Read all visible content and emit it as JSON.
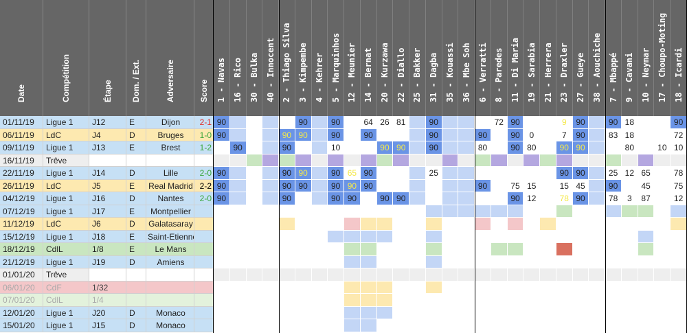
{
  "headers": {
    "date": "Date",
    "competition": "Compétition",
    "etape": "Étape",
    "dom_ext": "Dom. / Ext.",
    "adversaire": "Adversaire",
    "score": "Score"
  },
  "players": [
    "1 - Navas",
    "16 - Rico",
    "30 - Bulka",
    "40 - Innocent",
    "2 - Thiago Silva",
    "3 - Kimpembe",
    "4 - Kehrer",
    "5 - Marquinhos",
    "12 - Meunier",
    "14 - Bernat",
    "20 - Kurzawa",
    "22 - Diallo",
    "25 - Bakker",
    "31 - Dagba",
    "35 - Kouassi",
    "36 - Mbe Soh",
    "6 - Verratti",
    "8 - Paredes",
    "11 - Di Maria",
    "19 - Sarabia",
    "21 - Herrera",
    "23 - Draxler",
    "27 - Gueye",
    "38 - Aouchiche",
    "7 - Mbappé",
    "9 - Cavani",
    "10 - Neymar",
    "17 - Choupo-Moting",
    "18 - Icardi"
  ],
  "matches": [
    {
      "date": "01/11/19",
      "comp": "Ligue 1",
      "etape": "J12",
      "de": "E",
      "opp": "Dijon",
      "score": "2-1",
      "score_color": "#e0302a",
      "type": "L1",
      "cells": [
        "90",
        "",
        "",
        "",
        "",
        "90",
        "",
        "90",
        "",
        "64",
        "26",
        "81",
        "",
        "90",
        "",
        "",
        "",
        "72",
        "90",
        "",
        "",
        "9",
        "90",
        "",
        "90",
        "18",
        "",
        "",
        "90"
      ]
    },
    {
      "date": "06/11/19",
      "comp": "LdC",
      "etape": "J4",
      "de": "D",
      "opp": "Bruges",
      "score": "1-0",
      "score_color": "#3aa63a",
      "type": "LDC",
      "cells": [
        "90",
        "",
        "",
        "",
        "90",
        "90",
        "",
        "90",
        "",
        "90",
        "",
        "",
        "",
        "90",
        "",
        "",
        "90",
        "",
        "90",
        "0",
        "",
        "7",
        "90",
        "",
        "83",
        "18",
        "",
        "",
        "72"
      ]
    },
    {
      "date": "09/11/19",
      "comp": "Ligue 1",
      "etape": "J13",
      "de": "E",
      "opp": "Brest",
      "score": "1-2",
      "score_color": "#3aa63a",
      "type": "L1",
      "cells": [
        "",
        "90",
        "",
        "",
        "90",
        "",
        "",
        "10",
        "",
        "",
        "90",
        "90",
        "",
        "90",
        "",
        "",
        "80",
        "",
        "90",
        "80",
        "",
        "90",
        "90",
        "",
        "",
        "80",
        "",
        "10",
        "10"
      ]
    },
    {
      "date": "16/11/19",
      "comp": "Trêve",
      "etape": "",
      "de": "",
      "opp": "",
      "score": "",
      "score_color": "#000",
      "type": "TREVE",
      "cells": []
    },
    {
      "date": "22/11/19",
      "comp": "Ligue 1",
      "etape": "J14",
      "de": "D",
      "opp": "Lille",
      "score": "2-0",
      "score_color": "#3aa63a",
      "type": "L1",
      "cells": [
        "90",
        "",
        "",
        "",
        "90",
        "90",
        "",
        "90",
        "65",
        "90",
        "",
        "",
        "",
        "25",
        "",
        "",
        "",
        "",
        "",
        "",
        "",
        "90",
        "90",
        "",
        "25",
        "12",
        "65",
        "",
        "78"
      ]
    },
    {
      "date": "26/11/19",
      "comp": "LdC",
      "etape": "J5",
      "de": "E",
      "opp": "Real Madrid",
      "score": "2-2",
      "score_color": "#000000",
      "type": "LDC",
      "cells": [
        "90",
        "",
        "",
        "",
        "90",
        "90",
        "",
        "90",
        "90",
        "90",
        "",
        "",
        "",
        "",
        "",
        "",
        "90",
        "",
        "75",
        "15",
        "",
        "15",
        "45",
        "",
        "90",
        "",
        "45",
        "",
        "75"
      ]
    },
    {
      "date": "04/12/19",
      "comp": "Ligue 1",
      "etape": "J16",
      "de": "D",
      "opp": "Nantes",
      "score": "2-0",
      "score_color": "#3aa63a",
      "type": "L1",
      "cells": [
        "90",
        "",
        "",
        "",
        "90",
        "",
        "",
        "90",
        "90",
        "",
        "90",
        "90",
        "",
        "",
        "",
        "",
        "",
        "",
        "90",
        "12",
        "",
        "78",
        "90",
        "",
        "78",
        "3",
        "87",
        "",
        "12"
      ]
    },
    {
      "date": "07/12/19",
      "comp": "Ligue 1",
      "etape": "J17",
      "de": "E",
      "opp": "Montpellier",
      "score": "",
      "score_color": "#000",
      "type": "L1",
      "cells": []
    },
    {
      "date": "11/12/19",
      "comp": "LdC",
      "etape": "J6",
      "de": "D",
      "opp": "Galatasaray",
      "score": "",
      "score_color": "#000",
      "type": "LDC",
      "cells": []
    },
    {
      "date": "15/12/19",
      "comp": "Ligue 1",
      "etape": "J18",
      "de": "E",
      "opp": "Saint-Etienne",
      "score": "",
      "score_color": "#000",
      "type": "L1",
      "cells": []
    },
    {
      "date": "18/12/19",
      "comp": "CdlL",
      "etape": "1/8",
      "de": "E",
      "opp": "Le Mans",
      "score": "",
      "score_color": "#000",
      "type": "CDL",
      "cells": []
    },
    {
      "date": "21/12/19",
      "comp": "Ligue 1",
      "etape": "J19",
      "de": "D",
      "opp": "Amiens",
      "score": "",
      "score_color": "#000",
      "type": "L1",
      "cells": []
    },
    {
      "date": "01/01/20",
      "comp": "Trêve",
      "etape": "",
      "de": "",
      "opp": "",
      "score": "",
      "score_color": "#000",
      "type": "TREVE",
      "cells": []
    },
    {
      "date": "06/01/20",
      "comp": "CdF",
      "etape": "1/32",
      "de": "",
      "opp": "",
      "score": "",
      "score_color": "#000",
      "type": "CDF",
      "cells": []
    },
    {
      "date": "07/01/20",
      "comp": "CdlL",
      "etape": "1/4",
      "de": "",
      "opp": "",
      "score": "",
      "score_color": "#000",
      "type": "CDL2",
      "cells": []
    },
    {
      "date": "12/01/20",
      "comp": "Ligue 1",
      "etape": "J20",
      "de": "D",
      "opp": "Monaco",
      "score": "",
      "score_color": "#000",
      "type": "L1",
      "cells": []
    },
    {
      "date": "15/01/20",
      "comp": "Ligue 1",
      "etape": "J15",
      "de": "D",
      "opp": "Monaco",
      "score": "",
      "score_color": "#000",
      "type": "L1",
      "cells": []
    }
  ],
  "colors": {
    "L1": "#c6e0f5",
    "LDC": "#fde9b0",
    "CDL": "#c9e6c0",
    "CDF": "#f4c7c9",
    "TREVE": "#eeeeee",
    "CDL2": "#e3f2dc",
    "full": "#6a94e6",
    "partial": "#c3d6f6",
    "yellow_text": "#f5e94a",
    "treve_purple": "#b4a7e0",
    "treve_green": "#c9e6c0",
    "red_block": "#d9705f",
    "pink_block": "#f4c7c9",
    "yellow_block": "#fde9b0",
    "green_block": "#c9e6c0",
    "blue_block": "#c3d6f6"
  }
}
